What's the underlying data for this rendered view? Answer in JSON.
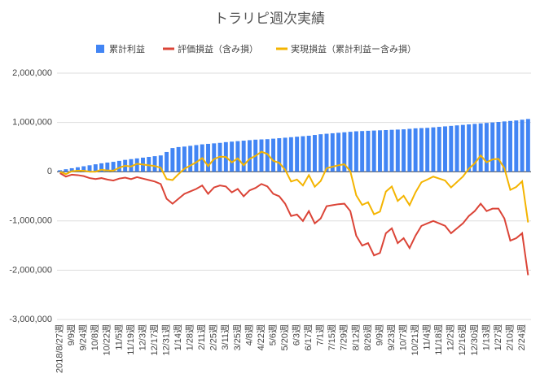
{
  "chart_data": {
    "type": "bar_line",
    "title": "トラリピ週次実績",
    "categories": [
      "2018/8/27週",
      null,
      "9/9週",
      null,
      "9/24週",
      null,
      "10/8週",
      null,
      "10/22週",
      null,
      "11/5週",
      null,
      "11/19週",
      null,
      "12/3週",
      null,
      "12/17週",
      null,
      "12/31週",
      null,
      "1/14週",
      null,
      "1/28週",
      null,
      "2/11週",
      null,
      "2/25週",
      null,
      "3/11週",
      null,
      "3/25週",
      null,
      "4/8週",
      null,
      "4/22週",
      null,
      "5/6週",
      null,
      "5/20週",
      null,
      "6/3週",
      null,
      "6/17週",
      null,
      "7/1週",
      null,
      "7/15週",
      null,
      "7/29週",
      null,
      "8/12週",
      null,
      "8/26週",
      null,
      "9/9週",
      null,
      "9/23週",
      null,
      "10/7週",
      null,
      "10/21週",
      null,
      "11/4週",
      null,
      "11/18週",
      null,
      "12/2週",
      null,
      "12/16週",
      null,
      "12/30週",
      null,
      "1/13週",
      null,
      "1/27週",
      null,
      "2/10週",
      null,
      "2/24週",
      null
    ],
    "series": [
      {
        "name": "累計利益",
        "kind": "bar",
        "color": "#4285f4",
        "values": [
          30000,
          50000,
          70000,
          90000,
          110000,
          130000,
          150000,
          170000,
          185000,
          200000,
          220000,
          240000,
          255000,
          270000,
          285000,
          300000,
          315000,
          330000,
          400000,
          480000,
          500000,
          510000,
          525000,
          540000,
          555000,
          565000,
          575000,
          585000,
          600000,
          610000,
          620000,
          630000,
          640000,
          650000,
          655000,
          660000,
          670000,
          680000,
          690000,
          700000,
          710000,
          720000,
          730000,
          745000,
          760000,
          770000,
          780000,
          790000,
          800000,
          810000,
          820000,
          825000,
          830000,
          835000,
          840000,
          845000,
          850000,
          855000,
          860000,
          870000,
          880000,
          885000,
          890000,
          900000,
          910000,
          920000,
          930000,
          940000,
          950000,
          960000,
          970000,
          980000,
          990000,
          1000000,
          1010000,
          1020000,
          1030000,
          1040000,
          1055000,
          1070000
        ]
      },
      {
        "name": "評価損益（含み損）",
        "kind": "line",
        "color": "#db4437",
        "values": [
          -30000,
          -100000,
          -60000,
          -70000,
          -90000,
          -130000,
          -150000,
          -130000,
          -160000,
          -180000,
          -140000,
          -120000,
          -150000,
          -110000,
          -140000,
          -170000,
          -200000,
          -250000,
          -550000,
          -650000,
          -550000,
          -450000,
          -400000,
          -350000,
          -280000,
          -450000,
          -320000,
          -280000,
          -300000,
          -420000,
          -350000,
          -500000,
          -380000,
          -330000,
          -250000,
          -300000,
          -450000,
          -500000,
          -650000,
          -900000,
          -870000,
          -1000000,
          -800000,
          -1050000,
          -950000,
          -700000,
          -680000,
          -660000,
          -650000,
          -800000,
          -1300000,
          -1500000,
          -1450000,
          -1700000,
          -1650000,
          -1250000,
          -1150000,
          -1450000,
          -1350000,
          -1550000,
          -1300000,
          -1100000,
          -1050000,
          -1000000,
          -1050000,
          -1100000,
          -1250000,
          -1150000,
          -1050000,
          -900000,
          -800000,
          -650000,
          -800000,
          -750000,
          -750000,
          -950000,
          -1400000,
          -1350000,
          -1250000,
          -2100000
        ]
      },
      {
        "name": "実現損益（累計利益ー含み損）",
        "kind": "line",
        "color": "#f4b400",
        "values": [
          0,
          -50000,
          10000,
          20000,
          20000,
          0,
          0,
          40000,
          25000,
          20000,
          80000,
          120000,
          105000,
          160000,
          145000,
          130000,
          115000,
          80000,
          -150000,
          -170000,
          -50000,
          60000,
          125000,
          190000,
          275000,
          115000,
          255000,
          305000,
          300000,
          190000,
          270000,
          130000,
          260000,
          320000,
          405000,
          360000,
          220000,
          180000,
          40000,
          -200000,
          -160000,
          -280000,
          -70000,
          -305000,
          -190000,
          70000,
          100000,
          130000,
          150000,
          10000,
          -480000,
          -675000,
          -620000,
          -865000,
          -810000,
          -405000,
          -300000,
          -595000,
          -490000,
          -680000,
          -420000,
          -215000,
          -160000,
          -100000,
          -140000,
          -180000,
          -320000,
          -210000,
          -100000,
          60000,
          170000,
          330000,
          190000,
          250000,
          260000,
          70000,
          -370000,
          -310000,
          -195000,
          -1030000
        ]
      }
    ],
    "ylim": [
      -3000000,
      2000000
    ],
    "yticks": [
      {
        "value": -3000000,
        "label": "-3,000,000"
      },
      {
        "value": -2000000,
        "label": "-2,000,000"
      },
      {
        "value": -1000000,
        "label": "-1,000,000"
      },
      0,
      {
        "value": 1000000,
        "label": "1,000,000"
      },
      {
        "value": 2000000,
        "label": "2,000,000"
      }
    ],
    "grid": true,
    "legend": "top"
  }
}
